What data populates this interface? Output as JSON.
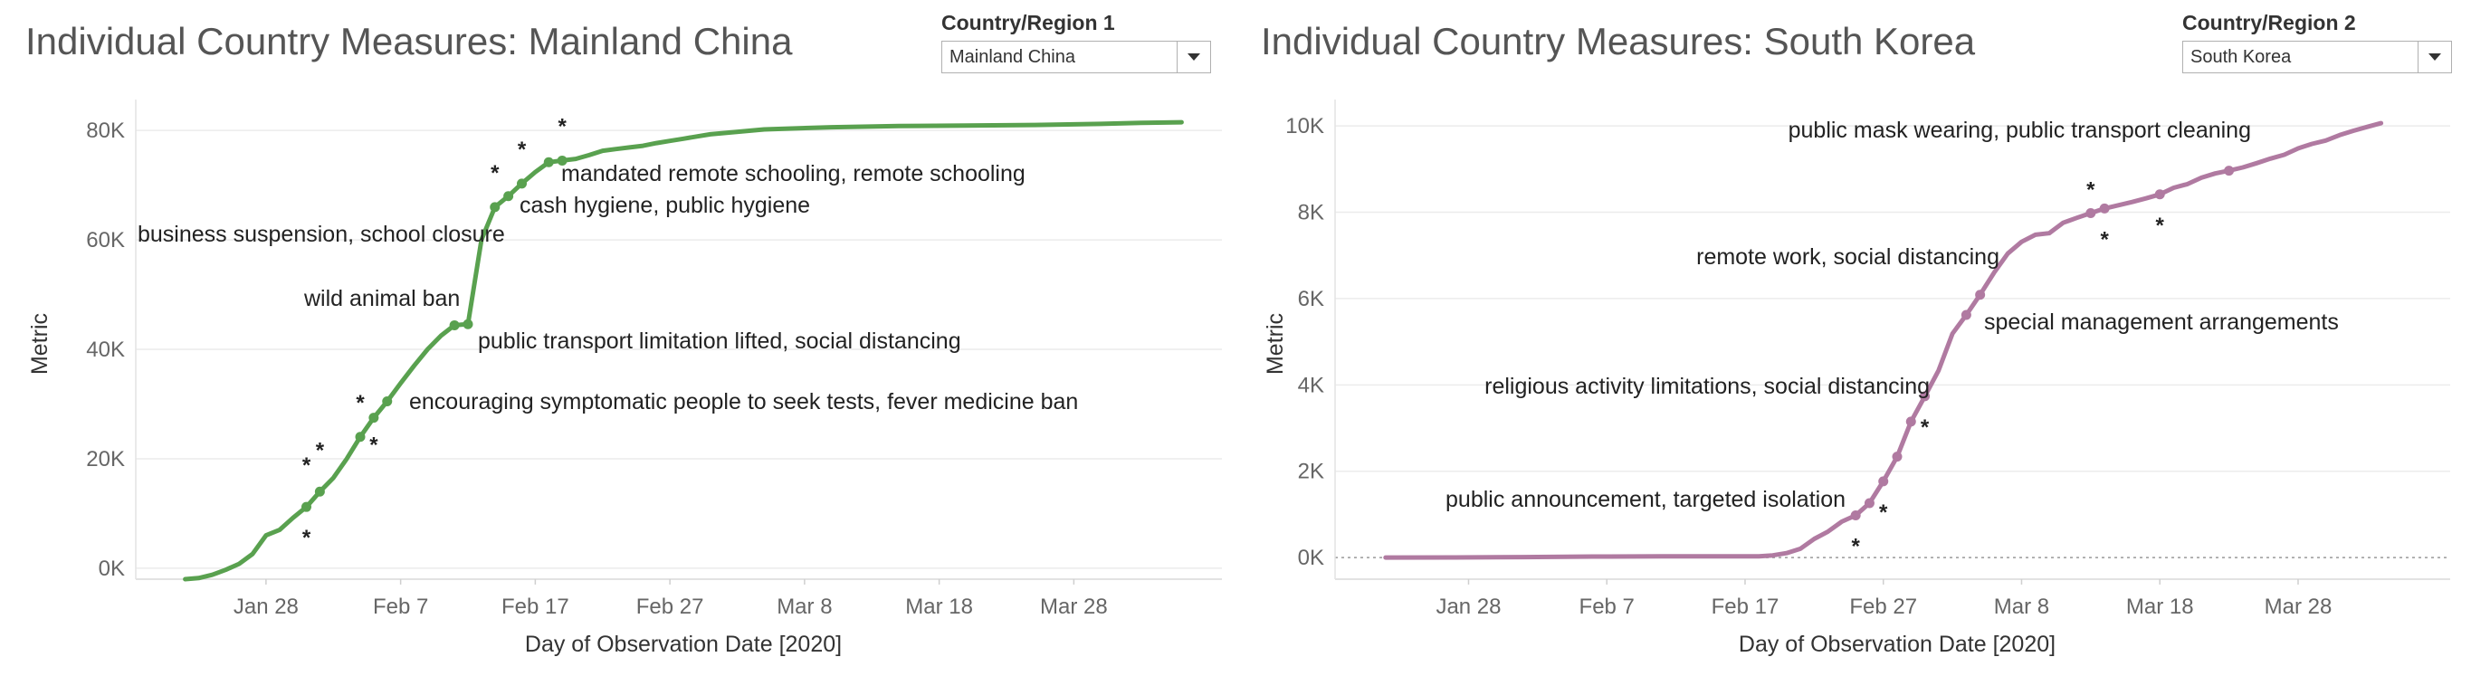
{
  "panels": [
    {
      "title": "Individual Country Measures: Mainland China",
      "filter": {
        "label": "Country/Region 1",
        "value": "Mainland China"
      }
    },
    {
      "title": "Individual Country Measures: South Korea",
      "filter": {
        "label": "Country/Region 2",
        "value": "South Korea"
      }
    }
  ],
  "chart_data": [
    {
      "type": "line",
      "title": "Individual Country Measures: Mainland China",
      "xlabel": "Day of Observation Date [2020]",
      "ylabel": "Metric",
      "x_ticks": [
        "Jan 28",
        "Feb 7",
        "Feb 17",
        "Feb 27",
        "Mar 8",
        "Mar 18",
        "Mar 28"
      ],
      "y_ticks": [
        "0K",
        "20K",
        "40K",
        "60K",
        "80K"
      ],
      "ylim": [
        -2000,
        84000
      ],
      "color": "#59a14f",
      "series": [
        {
          "x": [
            "2020-01-22",
            "2020-01-23",
            "2020-01-24",
            "2020-01-25",
            "2020-01-26",
            "2020-01-27",
            "2020-01-28",
            "2020-01-29",
            "2020-01-30",
            "2020-01-31",
            "2020-02-01",
            "2020-02-02",
            "2020-02-03",
            "2020-02-04",
            "2020-02-05",
            "2020-02-06",
            "2020-02-07",
            "2020-02-08",
            "2020-02-09",
            "2020-02-10",
            "2020-02-11",
            "2020-02-12",
            "2020-02-13",
            "2020-02-14",
            "2020-02-15",
            "2020-02-16",
            "2020-02-17",
            "2020-02-18",
            "2020-02-19",
            "2020-02-20",
            "2020-02-21",
            "2020-02-22",
            "2020-02-23",
            "2020-02-24",
            "2020-02-25",
            "2020-02-26",
            "2020-02-27",
            "2020-02-28",
            "2020-02-29",
            "2020-03-01",
            "2020-03-05",
            "2020-03-10",
            "2020-03-15",
            "2020-03-20",
            "2020-03-25",
            "2020-03-30",
            "2020-04-02",
            "2020-04-05"
          ],
          "values": [
            -2000,
            -1800,
            -1200,
            -300,
            800,
            2600,
            6000,
            7000,
            9200,
            11200,
            14000,
            16500,
            20000,
            24000,
            27500,
            30500,
            33800,
            37000,
            40000,
            42500,
            44400,
            44600,
            60000,
            66000,
            68000,
            70300,
            72400,
            74200,
            74500,
            74800,
            75500,
            76300,
            76600,
            76900,
            77200,
            77700,
            78100,
            78500,
            78900,
            79300,
            80200,
            80600,
            80800,
            80900,
            81000,
            81200,
            81400,
            81500
          ]
        }
      ],
      "markers": [
        "2020-01-31",
        "2020-02-01",
        "2020-02-04",
        "2020-02-05",
        "2020-02-06",
        "2020-02-11",
        "2020-02-12",
        "2020-02-14",
        "2020-02-15",
        "2020-02-16",
        "2020-02-18",
        "2020-02-19"
      ],
      "stars": [
        "2020-01-31",
        "2020-01-31",
        "2020-02-01",
        "2020-02-04",
        "2020-02-05",
        "2020-02-14",
        "2020-02-16",
        "2020-02-19"
      ],
      "annotations": [
        {
          "text": "business suspension, school closure"
        },
        {
          "text": "wild animal ban"
        },
        {
          "text": "mandated remote schooling, remote schooling"
        },
        {
          "text": "cash hygiene, public hygiene"
        },
        {
          "text": "public transport limitation lifted, social distancing"
        },
        {
          "text": "encouraging symptomatic people to seek tests, fever medicine ban"
        }
      ]
    },
    {
      "type": "line",
      "title": "Individual Country Measures: South Korea",
      "xlabel": "Day of Observation Date [2020]",
      "ylabel": "Metric",
      "x_ticks": [
        "Jan 28",
        "Feb 7",
        "Feb 17",
        "Feb 27",
        "Mar 8",
        "Mar 18",
        "Mar 28"
      ],
      "y_ticks": [
        "0K",
        "2K",
        "4K",
        "6K",
        "8K",
        "10K"
      ],
      "ylim": [
        -500,
        10400
      ],
      "zero_reference_line": true,
      "color": "#b07aa1",
      "series": [
        {
          "x": [
            "2020-01-22",
            "2020-01-27",
            "2020-02-01",
            "2020-02-06",
            "2020-02-11",
            "2020-02-16",
            "2020-02-18",
            "2020-02-19",
            "2020-02-20",
            "2020-02-21",
            "2020-02-22",
            "2020-02-23",
            "2020-02-24",
            "2020-02-25",
            "2020-02-26",
            "2020-02-27",
            "2020-02-28",
            "2020-02-29",
            "2020-03-01",
            "2020-03-02",
            "2020-03-03",
            "2020-03-04",
            "2020-03-05",
            "2020-03-06",
            "2020-03-07",
            "2020-03-08",
            "2020-03-09",
            "2020-03-10",
            "2020-03-11",
            "2020-03-12",
            "2020-03-13",
            "2020-03-14",
            "2020-03-15",
            "2020-03-16",
            "2020-03-17",
            "2020-03-18",
            "2020-03-19",
            "2020-03-20",
            "2020-03-21",
            "2020-03-22",
            "2020-03-23",
            "2020-03-24",
            "2020-03-25",
            "2020-03-26",
            "2020-03-27",
            "2020-03-28",
            "2020-03-29",
            "2020-03-30",
            "2020-03-31",
            "2020-04-01",
            "2020-04-02",
            "2020-04-03"
          ],
          "values": [
            1,
            4,
            12,
            23,
            28,
            30,
            31,
            51,
            104,
            204,
            433,
            602,
            833,
            977,
            1261,
            1766,
            2337,
            3150,
            3736,
            4335,
            5186,
            5621,
            6088,
            6593,
            7041,
            7314,
            7478,
            7513,
            7755,
            7869,
            7979,
            8086,
            8162,
            8236,
            8320,
            8413,
            8565,
            8652,
            8799,
            8897,
            8961,
            9037,
            9137,
            9241,
            9332,
            9478,
            9583,
            9661,
            9786,
            9887,
            9976,
            10062
          ]
        }
      ],
      "markers": [
        "2020-02-25",
        "2020-02-26",
        "2020-02-27",
        "2020-02-28",
        "2020-02-29",
        "2020-03-01",
        "2020-03-04",
        "2020-03-05",
        "2020-03-13",
        "2020-03-14",
        "2020-03-18",
        "2020-03-23"
      ],
      "stars": [
        "2020-02-25",
        "2020-02-27",
        "2020-03-01",
        "2020-03-13",
        "2020-03-14",
        "2020-03-18"
      ],
      "annotations": [
        {
          "text": "public announcement, targeted isolation"
        },
        {
          "text": "religious activity limitations, social distancing"
        },
        {
          "text": "special management arrangements"
        },
        {
          "text": "remote work, social distancing"
        },
        {
          "text": "public mask wearing, public transport cleaning"
        }
      ]
    }
  ]
}
